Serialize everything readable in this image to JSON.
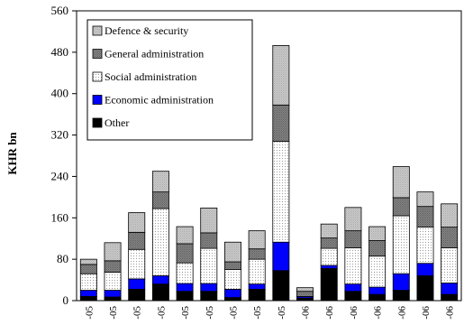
{
  "chart_data": {
    "type": "bar",
    "stacked": true,
    "ylabel": "KHR bn",
    "xlabel": "",
    "ylim": [
      0,
      560
    ],
    "yticks": [
      0,
      80,
      160,
      240,
      320,
      400,
      480,
      560
    ],
    "categories": [
      "-05",
      "-05",
      "-05",
      "-05",
      "-05",
      "-05",
      "-05",
      "-05",
      "-05",
      "-06",
      "-06",
      "-06",
      "-06",
      "-06",
      "-06",
      "-06"
    ],
    "legend_position": "top-left",
    "grid": false,
    "series": [
      {
        "name": "Other",
        "color": "#000000",
        "pattern": "black",
        "values": [
          8,
          7,
          22,
          32,
          18,
          18,
          6,
          22,
          58,
          5,
          62,
          18,
          12,
          20,
          48,
          12
        ]
      },
      {
        "name": "Economic administration",
        "color": "#0000ff",
        "pattern": "blue",
        "values": [
          12,
          13,
          20,
          16,
          15,
          15,
          16,
          10,
          55,
          3,
          6,
          14,
          14,
          32,
          24,
          22
        ]
      },
      {
        "name": "Social administration",
        "color": "#ffffff",
        "pattern": "dots",
        "values": [
          32,
          35,
          57,
          130,
          40,
          68,
          38,
          48,
          195,
          0,
          33,
          70,
          60,
          112,
          70,
          68
        ]
      },
      {
        "name": "General administration",
        "color": "#808080",
        "pattern": "darkgray",
        "values": [
          18,
          22,
          33,
          32,
          37,
          30,
          15,
          20,
          70,
          10,
          20,
          33,
          30,
          35,
          40,
          40
        ]
      },
      {
        "name": "Defence & security",
        "color": "#c0c0c0",
        "pattern": "lightgray",
        "values": [
          10,
          35,
          38,
          40,
          33,
          48,
          38,
          35,
          115,
          7,
          27,
          45,
          27,
          60,
          28,
          45
        ]
      }
    ]
  }
}
